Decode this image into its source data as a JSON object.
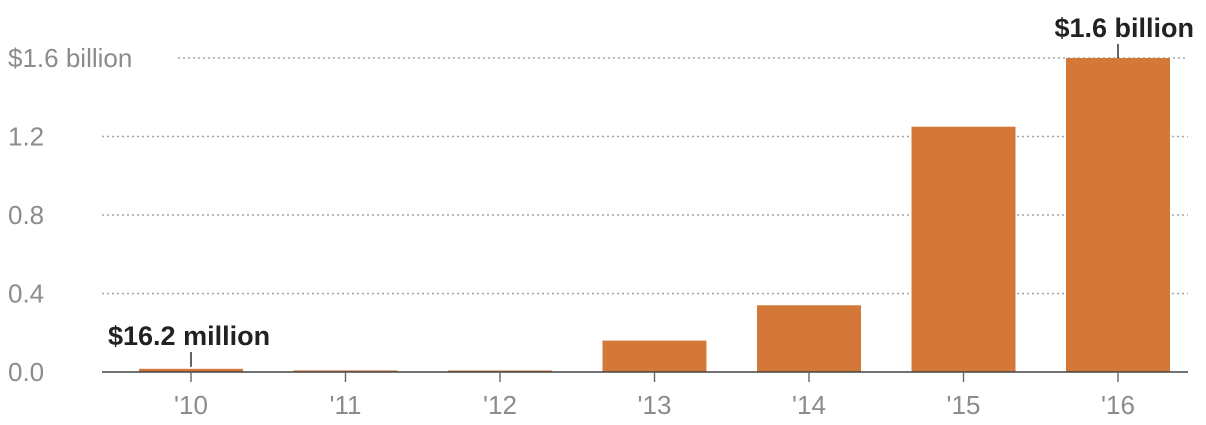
{
  "chart_data": {
    "type": "bar",
    "categories": [
      "'10",
      "'11",
      "'12",
      "'13",
      "'14",
      "'15",
      "'16"
    ],
    "values": [
      0.0162,
      0.008,
      0.004,
      0.16,
      0.34,
      1.25,
      1.6
    ],
    "ylim": [
      0,
      1.6
    ],
    "yticks": [
      0,
      0.4,
      0.8,
      1.2,
      1.6
    ],
    "ytick_labels": [
      "0.0",
      "0.4",
      "0.8",
      "1.2",
      "$1.6 billion"
    ],
    "grid": true,
    "bar_color": "#d4783a",
    "annotations": [
      {
        "category": "'10",
        "text": "$16.2 million"
      },
      {
        "category": "'16",
        "text": "$1.6 billion"
      }
    ]
  }
}
